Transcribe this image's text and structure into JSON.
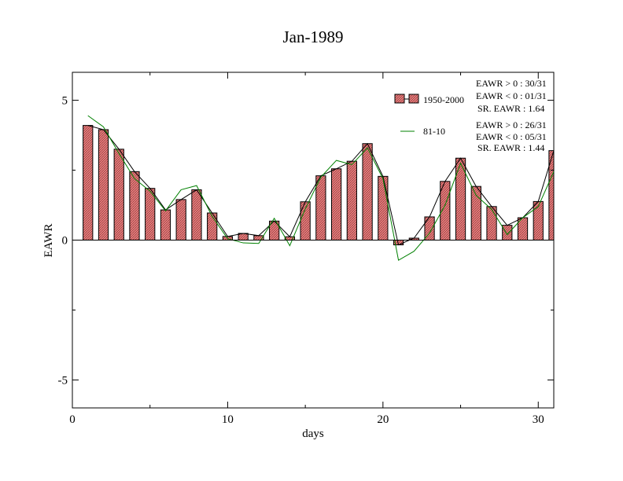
{
  "chart_data": {
    "type": "bar",
    "title": "Jan-1989",
    "xlabel": "days",
    "ylabel": "EAWR",
    "xlim": [
      0,
      31
    ],
    "ylim": [
      -6,
      6
    ],
    "x_ticks": [
      "0",
      "10",
      "20",
      "30"
    ],
    "y_ticks": [
      "-5",
      "0",
      "5"
    ],
    "x": [
      1,
      2,
      3,
      4,
      5,
      6,
      7,
      8,
      9,
      10,
      11,
      12,
      13,
      14,
      15,
      16,
      17,
      18,
      19,
      20,
      21,
      22,
      23,
      24,
      25,
      26,
      27,
      28,
      29,
      30,
      31
    ],
    "series": [
      {
        "name": "1950-2000",
        "kind": "bar+line",
        "color": "#e07070",
        "values": [
          4.1,
          3.95,
          3.25,
          2.45,
          1.85,
          1.08,
          1.45,
          1.8,
          0.97,
          0.13,
          0.24,
          0.16,
          0.68,
          0.12,
          1.37,
          2.3,
          2.55,
          2.82,
          3.45,
          2.28,
          -0.17,
          0.07,
          0.83,
          2.1,
          2.93,
          1.92,
          1.2,
          0.53,
          0.8,
          1.38,
          3.2
        ]
      },
      {
        "name": "81-10",
        "kind": "line",
        "color": "#008000",
        "values": [
          4.45,
          4.05,
          3.1,
          2.2,
          1.75,
          1.05,
          1.8,
          1.95,
          0.85,
          0.05,
          -0.1,
          -0.12,
          0.78,
          -0.2,
          1.12,
          2.25,
          2.85,
          2.7,
          3.3,
          2.2,
          -0.72,
          -0.4,
          0.25,
          1.25,
          2.75,
          1.6,
          1.1,
          0.2,
          0.8,
          1.2,
          2.45
        ]
      }
    ],
    "legend": {
      "placement": "top-right"
    },
    "grid": false,
    "stats": {
      "series_1": [
        "EAWR > 0 : 30/31",
        "EAWR < 0 : 01/31",
        "SR. EAWR :  1.64"
      ],
      "series_2": [
        "EAWR > 0 : 26/31",
        "EAWR < 0 : 05/31",
        "SR. EAWR :  1.44"
      ]
    }
  }
}
